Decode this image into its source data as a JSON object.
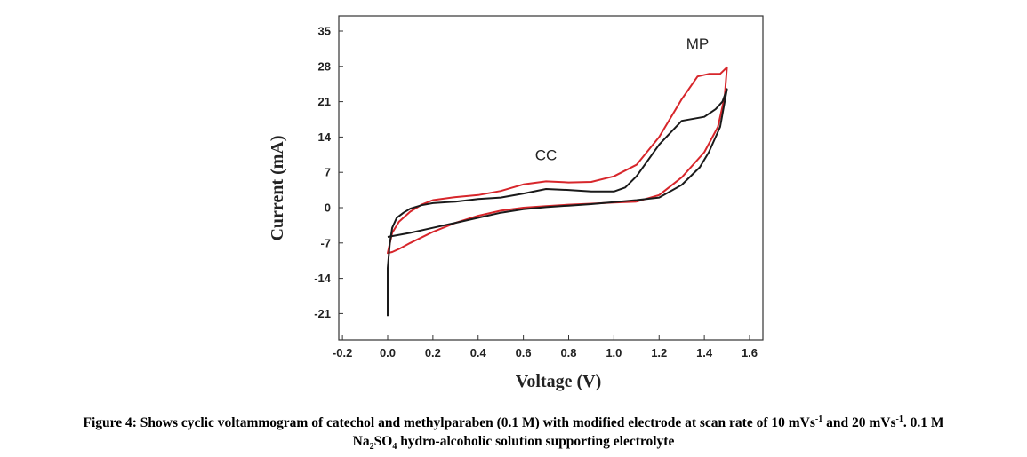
{
  "chart_data": {
    "type": "line",
    "title": "",
    "xlabel": "Voltage (V)",
    "ylabel": "Current (mA)",
    "xlim": [
      -0.2,
      1.6
    ],
    "ylim": [
      -24,
      35
    ],
    "xticks": [
      "-0.2",
      "0.0",
      "0.2",
      "0.4",
      "0.6",
      "0.8",
      "1.0",
      "1.2",
      "1.4",
      "1.6"
    ],
    "yticks": [
      "35",
      "28",
      "21",
      "14",
      "7",
      "0",
      "-7",
      "-14",
      "-21"
    ],
    "annotations": [
      {
        "text": "CC",
        "x": 0.7,
        "y": 10.5
      },
      {
        "text": "MP",
        "x": 1.37,
        "y": 32.5
      }
    ],
    "series": [
      {
        "color": "#d7262b",
        "x": [
          1.1,
          1.2,
          1.3,
          1.4,
          1.46,
          1.49,
          1.5,
          1.47,
          1.42,
          1.37,
          1.3,
          1.2,
          1.1,
          1.0,
          0.9,
          0.8,
          0.7,
          0.6,
          0.5,
          0.4,
          0.3,
          0.2,
          0.15,
          0.1,
          0.05,
          0.02,
          0.0,
          0.02,
          0.05,
          0.1,
          0.2,
          0.3,
          0.4,
          0.5,
          0.6,
          0.7,
          0.8,
          0.9,
          1.0,
          1.1
        ],
        "y": [
          1.2,
          2.5,
          6.0,
          11.0,
          16.0,
          22.0,
          27.8,
          26.5,
          26.5,
          26.0,
          21.5,
          14.0,
          8.5,
          6.2,
          5.1,
          5.0,
          5.2,
          4.6,
          3.3,
          2.5,
          2.1,
          1.5,
          0.6,
          -0.8,
          -2.8,
          -5.0,
          -9.0,
          -8.8,
          -8.2,
          -7.0,
          -4.8,
          -3.0,
          -1.6,
          -0.6,
          0.0,
          0.3,
          0.6,
          0.8,
          1.0,
          1.2
        ]
      },
      {
        "color": "#1a1a1a",
        "x": [
          0.0,
          0.0,
          0.01,
          0.02,
          0.04,
          0.07,
          0.1,
          0.15,
          0.2,
          0.3,
          0.4,
          0.5,
          0.6,
          0.7,
          0.8,
          0.9,
          1.0,
          1.05,
          1.1,
          1.2,
          1.3,
          1.4,
          1.45,
          1.48,
          1.5,
          1.47,
          1.42,
          1.38,
          1.3,
          1.2,
          1.1,
          1.0,
          0.9,
          0.8,
          0.7,
          0.6,
          0.5,
          0.4,
          0.3,
          0.2,
          0.1,
          0.0
        ],
        "y": [
          -21.5,
          -12.0,
          -7.0,
          -4.0,
          -2.0,
          -1.0,
          -0.2,
          0.5,
          0.9,
          1.2,
          1.7,
          2.0,
          2.8,
          3.7,
          3.5,
          3.2,
          3.2,
          4.0,
          6.2,
          12.5,
          17.2,
          18.0,
          19.5,
          21.0,
          23.5,
          16.0,
          11.0,
          8.0,
          4.5,
          2.0,
          1.5,
          1.1,
          0.7,
          0.4,
          0.1,
          -0.3,
          -1.0,
          -2.0,
          -3.0,
          -4.0,
          -5.0,
          -5.8
        ]
      }
    ]
  },
  "caption": {
    "line1_prefix": "Figure 4: Shows cyclic voltammogram of catechol and methylparaben (0.1 M) with modified electrode at scan rate of 10 mVs",
    "sup1": "-1",
    "and_text": " and 20 mVs",
    "sup2": "-1",
    "line1_suffix": ". 0.1 M",
    "na_text": "Na",
    "sub1": "2",
    "so_text": "SO",
    "sub2": "4",
    "line2_suffix": " hydro-alcoholic solution supporting electrolyte"
  }
}
